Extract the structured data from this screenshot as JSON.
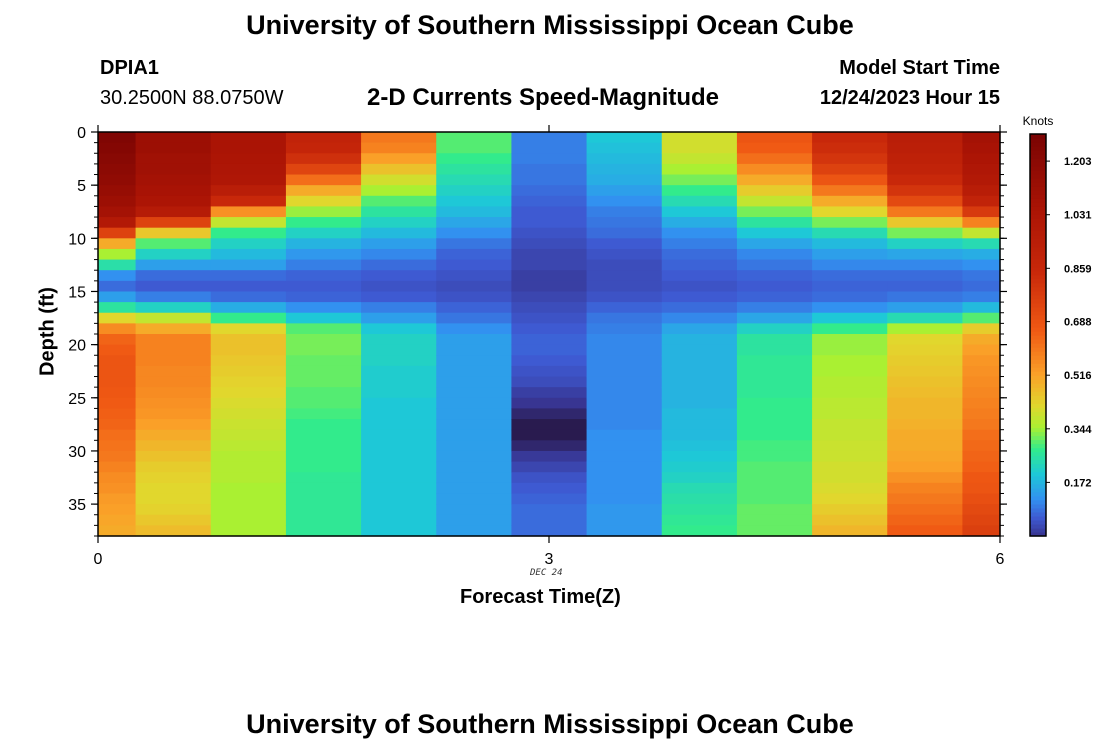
{
  "header": {
    "title": "University of Southern Mississippi Ocean Cube",
    "station": "DPIA1",
    "coords": "30.2500N  88.0750W",
    "subtitle": "2-D Currents Speed-Magnitude",
    "model_label": "Model Start Time",
    "model_time": "12/24/2023 Hour 15"
  },
  "footer": {
    "title": "University of Southern Mississippi Ocean Cube"
  },
  "chart_data": {
    "type": "heatmap",
    "title": "2-D Currents Speed-Magnitude",
    "xlabel": "Forecast Time(Z)",
    "ylabel": "Depth (ft)",
    "x_ticks": [
      "0",
      "3",
      "6"
    ],
    "x_tick_values": [
      0,
      3,
      6
    ],
    "x_date_label": "DEC 24",
    "y_ticks": [
      "0",
      "5",
      "10",
      "15",
      "20",
      "25",
      "30",
      "35"
    ],
    "y_tick_values": [
      0,
      5,
      10,
      15,
      20,
      25,
      30,
      35
    ],
    "xlim": [
      0,
      6
    ],
    "ylim": [
      38,
      0
    ],
    "time_edges": [
      0,
      0.25,
      0.75,
      1.25,
      1.75,
      2.25,
      2.75,
      3.25,
      3.75,
      4.25,
      4.75,
      5.25,
      5.75,
      6
    ],
    "depth_rows": 38,
    "columns": [
      {
        "x": 0.0,
        "values": [
          1.26,
          1.24,
          1.22,
          1.2,
          1.18,
          1.15,
          1.12,
          1.08,
          1.0,
          0.75,
          0.5,
          0.35,
          0.25,
          0.12,
          0.08,
          0.14,
          0.26,
          0.42,
          0.56,
          0.64,
          0.66,
          0.68,
          0.68,
          0.68,
          0.67,
          0.66,
          0.65,
          0.64,
          0.62,
          0.61,
          0.6,
          0.58,
          0.56,
          0.55,
          0.53,
          0.52,
          0.51,
          0.5
        ]
      },
      {
        "x": 0.5,
        "values": [
          1.12,
          1.12,
          1.1,
          1.1,
          1.08,
          1.06,
          1.04,
          0.98,
          0.75,
          0.45,
          0.3,
          0.22,
          0.14,
          0.08,
          0.06,
          0.1,
          0.22,
          0.38,
          0.5,
          0.58,
          0.58,
          0.58,
          0.57,
          0.57,
          0.56,
          0.55,
          0.54,
          0.52,
          0.5,
          0.48,
          0.46,
          0.44,
          0.43,
          0.42,
          0.42,
          0.43,
          0.45,
          0.47
        ]
      },
      {
        "x": 1.0,
        "values": [
          1.05,
          1.05,
          1.04,
          1.03,
          1.02,
          0.95,
          0.85,
          0.55,
          0.38,
          0.28,
          0.22,
          0.18,
          0.14,
          0.08,
          0.06,
          0.08,
          0.16,
          0.28,
          0.42,
          0.46,
          0.46,
          0.45,
          0.44,
          0.43,
          0.42,
          0.41,
          0.4,
          0.39,
          0.38,
          0.37,
          0.36,
          0.36,
          0.36,
          0.35,
          0.35,
          0.35,
          0.35,
          0.35
        ]
      },
      {
        "x": 1.5,
        "values": [
          0.9,
          0.88,
          0.82,
          0.74,
          0.62,
          0.5,
          0.42,
          0.34,
          0.28,
          0.22,
          0.17,
          0.13,
          0.1,
          0.07,
          0.06,
          0.07,
          0.12,
          0.2,
          0.3,
          0.32,
          0.32,
          0.31,
          0.31,
          0.31,
          0.3,
          0.3,
          0.29,
          0.28,
          0.28,
          0.28,
          0.28,
          0.28,
          0.27,
          0.27,
          0.27,
          0.27,
          0.27,
          0.27
        ]
      },
      {
        "x": 2.0,
        "values": [
          0.6,
          0.58,
          0.52,
          0.46,
          0.4,
          0.35,
          0.3,
          0.26,
          0.22,
          0.18,
          0.14,
          0.11,
          0.08,
          0.06,
          0.05,
          0.06,
          0.1,
          0.14,
          0.2,
          0.22,
          0.22,
          0.22,
          0.21,
          0.21,
          0.21,
          0.2,
          0.2,
          0.2,
          0.2,
          0.2,
          0.2,
          0.2,
          0.2,
          0.2,
          0.2,
          0.2,
          0.2,
          0.2
        ]
      },
      {
        "x": 2.5,
        "values": [
          0.3,
          0.3,
          0.28,
          0.26,
          0.24,
          0.22,
          0.2,
          0.18,
          0.15,
          0.12,
          0.09,
          0.07,
          0.06,
          0.05,
          0.04,
          0.05,
          0.07,
          0.09,
          0.12,
          0.14,
          0.14,
          0.14,
          0.14,
          0.14,
          0.14,
          0.14,
          0.14,
          0.14,
          0.14,
          0.14,
          0.14,
          0.14,
          0.14,
          0.14,
          0.14,
          0.14,
          0.14,
          0.14
        ]
      },
      {
        "x": 3.0,
        "values": [
          0.1,
          0.1,
          0.1,
          0.09,
          0.09,
          0.08,
          0.07,
          0.06,
          0.06,
          0.05,
          0.04,
          0.03,
          0.03,
          0.02,
          0.02,
          0.03,
          0.04,
          0.05,
          0.06,
          0.07,
          0.07,
          0.06,
          0.05,
          0.04,
          0.02,
          0.005,
          -0.01,
          -0.02,
          -0.02,
          -0.01,
          0.01,
          0.03,
          0.05,
          0.06,
          0.07,
          0.08,
          0.08,
          0.08
        ]
      },
      {
        "x": 3.5,
        "values": [
          0.2,
          0.19,
          0.18,
          0.17,
          0.16,
          0.14,
          0.12,
          0.1,
          0.09,
          0.08,
          0.06,
          0.05,
          0.04,
          0.04,
          0.04,
          0.05,
          0.07,
          0.09,
          0.1,
          0.11,
          0.11,
          0.11,
          0.11,
          0.11,
          0.11,
          0.11,
          0.11,
          0.11,
          0.12,
          0.12,
          0.12,
          0.12,
          0.12,
          0.12,
          0.12,
          0.13,
          0.13,
          0.13
        ]
      },
      {
        "x": 4.0,
        "values": [
          0.4,
          0.4,
          0.38,
          0.35,
          0.32,
          0.28,
          0.24,
          0.2,
          0.16,
          0.12,
          0.1,
          0.08,
          0.07,
          0.06,
          0.05,
          0.06,
          0.08,
          0.11,
          0.15,
          0.17,
          0.17,
          0.17,
          0.17,
          0.17,
          0.17,
          0.17,
          0.18,
          0.18,
          0.18,
          0.19,
          0.2,
          0.21,
          0.22,
          0.24,
          0.25,
          0.26,
          0.27,
          0.28
        ]
      },
      {
        "x": 4.5,
        "values": [
          0.68,
          0.66,
          0.62,
          0.56,
          0.5,
          0.44,
          0.38,
          0.32,
          0.26,
          0.2,
          0.15,
          0.11,
          0.09,
          0.07,
          0.06,
          0.07,
          0.1,
          0.15,
          0.22,
          0.26,
          0.26,
          0.27,
          0.27,
          0.27,
          0.27,
          0.28,
          0.28,
          0.28,
          0.28,
          0.29,
          0.29,
          0.3,
          0.3,
          0.3,
          0.3,
          0.31,
          0.31,
          0.31
        ]
      },
      {
        "x": 5.0,
        "values": [
          0.85,
          0.83,
          0.8,
          0.75,
          0.68,
          0.6,
          0.5,
          0.42,
          0.32,
          0.24,
          0.18,
          0.14,
          0.11,
          0.08,
          0.07,
          0.08,
          0.12,
          0.2,
          0.28,
          0.34,
          0.34,
          0.35,
          0.35,
          0.36,
          0.36,
          0.37,
          0.37,
          0.38,
          0.38,
          0.39,
          0.39,
          0.4,
          0.4,
          0.41,
          0.42,
          0.44,
          0.46,
          0.48
        ]
      },
      {
        "x": 5.5,
        "values": [
          0.95,
          0.94,
          0.92,
          0.9,
          0.85,
          0.8,
          0.72,
          0.6,
          0.45,
          0.32,
          0.22,
          0.15,
          0.11,
          0.08,
          0.07,
          0.09,
          0.14,
          0.24,
          0.35,
          0.42,
          0.43,
          0.44,
          0.45,
          0.46,
          0.47,
          0.48,
          0.48,
          0.49,
          0.5,
          0.5,
          0.51,
          0.52,
          0.55,
          0.58,
          0.6,
          0.62,
          0.64,
          0.66
        ]
      },
      {
        "x": 5.875,
        "values": [
          1.08,
          1.06,
          1.04,
          1.02,
          1.0,
          0.96,
          0.9,
          0.78,
          0.58,
          0.38,
          0.24,
          0.16,
          0.12,
          0.09,
          0.08,
          0.1,
          0.18,
          0.3,
          0.44,
          0.5,
          0.52,
          0.54,
          0.55,
          0.56,
          0.57,
          0.58,
          0.59,
          0.6,
          0.62,
          0.63,
          0.64,
          0.65,
          0.67,
          0.68,
          0.7,
          0.72,
          0.74,
          0.76
        ]
      }
    ],
    "colorbar": {
      "label": "Knots",
      "min": 0.0,
      "max": 1.29,
      "ticks": [
        "1.203",
        "1.031",
        "0.859",
        "0.688",
        "0.516",
        "0.344",
        "0.172"
      ],
      "tick_values": [
        1.203,
        1.031,
        0.859,
        0.688,
        0.516,
        0.344,
        0.172
      ]
    }
  }
}
